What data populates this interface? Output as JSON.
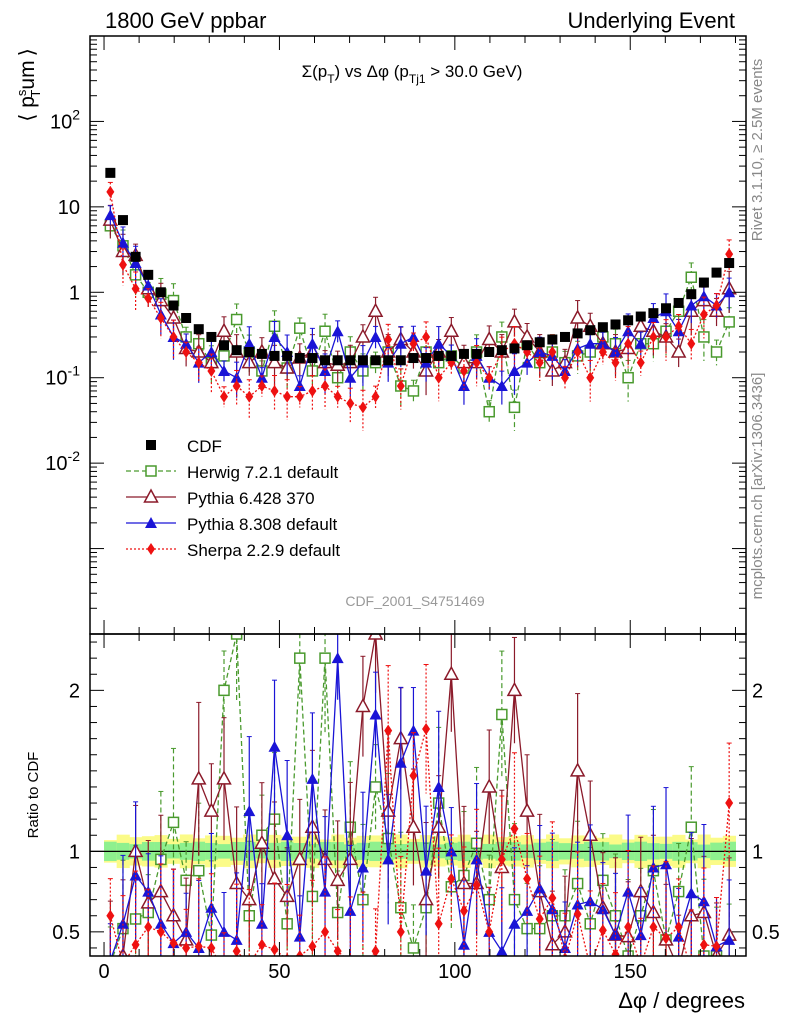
{
  "header": {
    "left": "1800 GeV ppbar",
    "right": "Underlying Event"
  },
  "side_labels": {
    "rivet": "Rivet 3.1.10, ≥ 2.5M events",
    "mcplots": "mcplots.cern.ch [arXiv:1306.3436]"
  },
  "watermark": "CDF_2001_S4751469",
  "colors": {
    "cdf": "#000000",
    "herwig": "#4a9a2e",
    "pythia6": "#8b1a2a",
    "pythia8": "#1a14d6",
    "sherpa": "#ee1111",
    "band_inner": "#8ef08e",
    "band_outer": "#fbfb88"
  },
  "chart_data": [
    {
      "type": "scatter",
      "title": "Σ(p_T) vs Δφ (p_Tj1 > 30.0 GeV)",
      "ylabel": "⟨ p_T^sum ⟩",
      "xlabel": "Δφ / degrees",
      "yscale": "log",
      "ylim": [
        0.0001,
        1000
      ],
      "xlim": [
        -4,
        183
      ],
      "yticks": [
        {
          "value": 0.01,
          "label": "10^-2"
        },
        {
          "value": 0.1,
          "label": "10^-1"
        },
        {
          "value": 1,
          "label": "1"
        },
        {
          "value": 10,
          "label": "10"
        },
        {
          "value": 100,
          "label": "10^2"
        }
      ],
      "legend_position": "bottom-left",
      "legend": [
        "CDF",
        "Herwig 7.2.1 default",
        "Pythia 6.428 370",
        "Pythia 8.308 default",
        "Sherpa 2.2.9 default"
      ],
      "x": [
        1.8,
        5.4,
        9,
        12.6,
        16.2,
        19.8,
        23.4,
        27,
        30.6,
        34.2,
        37.8,
        41.4,
        45,
        48.6,
        52.2,
        55.8,
        59.4,
        63,
        66.6,
        70.2,
        73.8,
        77.4,
        81,
        84.6,
        88.2,
        91.8,
        95.4,
        99,
        102.6,
        106.2,
        109.8,
        113.4,
        117,
        120.6,
        124.2,
        127.8,
        131.4,
        135,
        138.6,
        142.2,
        145.8,
        149.4,
        153,
        156.6,
        160.2,
        163.8,
        167.4,
        171,
        174.6,
        178.2
      ],
      "series": [
        {
          "name": "CDF",
          "values": [
            25,
            7,
            2.6,
            1.6,
            1.0,
            0.7,
            0.5,
            0.37,
            0.3,
            0.24,
            0.21,
            0.2,
            0.19,
            0.18,
            0.18,
            0.17,
            0.17,
            0.16,
            0.16,
            0.16,
            0.16,
            0.16,
            0.16,
            0.16,
            0.17,
            0.17,
            0.18,
            0.18,
            0.19,
            0.19,
            0.2,
            0.21,
            0.22,
            0.24,
            0.26,
            0.28,
            0.3,
            0.33,
            0.36,
            0.39,
            0.42,
            0.47,
            0.52,
            0.57,
            0.65,
            0.75,
            0.95,
            1.3,
            1.7,
            2.2
          ]
        },
        {
          "name": "Herwig 7.2.1 default",
          "values": [
            6,
            3.5,
            1.6,
            1.0,
            0.95,
            0.8,
            0.3,
            0.25,
            0.15,
            0.18,
            0.48,
            0.2,
            0.12,
            0.4,
            0.13,
            0.38,
            0.12,
            0.35,
            0.1,
            0.2,
            0.12,
            0.15,
            0.2,
            0.08,
            0.07,
            0.2,
            0.15,
            0.18,
            0.13,
            0.2,
            0.04,
            0.3,
            0.045,
            0.25,
            0.15,
            0.2,
            0.15,
            0.18,
            0.2,
            0.3,
            0.25,
            0.1,
            0.25,
            0.25,
            0.35,
            0.6,
            1.5,
            0.3,
            0.2,
            0.45
          ]
        },
        {
          "name": "Pythia 6.428 370",
          "values": [
            7,
            3.0,
            2.7,
            1.1,
            0.8,
            0.5,
            0.22,
            0.2,
            0.15,
            0.35,
            0.2,
            0.15,
            0.2,
            0.15,
            0.13,
            0.17,
            0.2,
            0.15,
            0.14,
            0.15,
            0.3,
            0.6,
            0.2,
            0.28,
            0.2,
            0.12,
            0.2,
            0.35,
            0.15,
            0.15,
            0.28,
            0.2,
            0.45,
            0.3,
            0.2,
            0.12,
            0.15,
            0.5,
            0.4,
            0.25,
            0.2,
            0.22,
            0.4,
            0.35,
            0.3,
            0.2,
            0.6,
            0.8,
            0.6,
            1.1
          ]
        },
        {
          "name": "Pythia 8.308 default",
          "values": [
            8,
            3.8,
            2.2,
            1.2,
            0.55,
            0.3,
            0.25,
            0.15,
            0.2,
            0.12,
            0.1,
            0.25,
            0.1,
            0.3,
            0.2,
            0.08,
            0.25,
            0.12,
            0.35,
            0.1,
            0.15,
            0.3,
            0.15,
            0.25,
            0.3,
            0.15,
            0.25,
            0.18,
            0.08,
            0.18,
            0.1,
            0.08,
            0.12,
            0.15,
            0.2,
            0.18,
            0.12,
            0.22,
            0.25,
            0.25,
            0.2,
            0.35,
            0.25,
            0.5,
            0.6,
            0.35,
            0.7,
            0.9,
            0.7,
            1.0
          ]
        },
        {
          "name": "Sherpa 2.2.9 default",
          "values": [
            15,
            2.1,
            1.1,
            0.85,
            0.5,
            0.3,
            0.2,
            0.15,
            0.12,
            0.06,
            0.08,
            0.06,
            0.08,
            0.07,
            0.06,
            0.06,
            0.07,
            0.08,
            0.06,
            0.05,
            0.045,
            0.06,
            0.28,
            0.08,
            0.25,
            0.3,
            0.1,
            0.15,
            0.12,
            0.15,
            0.1,
            0.2,
            0.25,
            0.2,
            0.15,
            0.2,
            0.1,
            0.2,
            0.1,
            0.2,
            0.15,
            0.25,
            0.15,
            0.3,
            0.3,
            0.4,
            0.25,
            0.55,
            0.7,
            2.8
          ]
        }
      ]
    },
    {
      "type": "scatter",
      "ylabel": "Ratio to CDF",
      "xlabel": "Δφ / degrees",
      "ylim": [
        0.35,
        2.35
      ],
      "xlim": [
        -4,
        183
      ],
      "yticks": [
        {
          "value": 0.5,
          "label": "0.5"
        },
        {
          "value": 1,
          "label": "1"
        },
        {
          "value": 2,
          "label": "2"
        }
      ],
      "xticks": [
        0,
        50,
        100,
        150
      ],
      "reference_line": 1,
      "x": [
        1.8,
        5.4,
        9,
        12.6,
        16.2,
        19.8,
        23.4,
        27,
        30.6,
        34.2,
        37.8,
        41.4,
        45,
        48.6,
        52.2,
        55.8,
        59.4,
        63,
        66.6,
        70.2,
        73.8,
        77.4,
        81,
        84.6,
        88.2,
        91.8,
        95.4,
        99,
        102.6,
        106.2,
        109.8,
        113.4,
        117,
        120.6,
        124.2,
        127.8,
        131.4,
        135,
        138.6,
        142.2,
        145.8,
        149.4,
        153,
        156.6,
        160.2,
        163.8,
        167.4,
        171,
        174.6,
        178.2
      ],
      "series": [
        {
          "name": "Herwig 7.2.1 default",
          "values": [
            0.3,
            0.52,
            0.58,
            0.62,
            0.95,
            1.18,
            0.82,
            0.88,
            0.48,
            2.0,
            2.35,
            0.6,
            1.1,
            1.2,
            0.55,
            2.2,
            0.72,
            2.2,
            0.62,
            1.15,
            0.7,
            1.4,
            1.08,
            0.65,
            0.4,
            0.65,
            1.3,
            0.78,
            0.85,
            1.05,
            0.7,
            1.85,
            0.7,
            0.52,
            0.52,
            0.6,
            0.6,
            0.8,
            0.55,
            0.82,
            0.6,
            0.35,
            0.6,
            0.88,
            0.45,
            0.75,
            1.15,
            0.35,
            0.35,
            0.3
          ]
        },
        {
          "name": "Pythia 6.428 370",
          "values": [
            0.3,
            0.35,
            1.0,
            0.68,
            0.75,
            0.6,
            0.45,
            1.45,
            1.25,
            1.45,
            0.8,
            0.7,
            1.05,
            0.83,
            0.72,
            0.95,
            1.15,
            0.95,
            0.82,
            0.95,
            1.9,
            2.35,
            1.25,
            1.7,
            1.15,
            0.7,
            1.15,
            2.1,
            0.8,
            0.8,
            1.4,
            0.9,
            2.0,
            1.25,
            0.75,
            0.42,
            0.5,
            1.5,
            1.1,
            0.65,
            0.48,
            0.47,
            0.75,
            0.62,
            0.45,
            0.27,
            0.6,
            0.62,
            0.35,
            0.48
          ]
        },
        {
          "name": "Pythia 8.308 default",
          "values": [
            0.32,
            0.55,
            0.85,
            0.75,
            0.55,
            0.43,
            0.5,
            0.4,
            0.65,
            0.5,
            0.45,
            1.25,
            0.55,
            1.65,
            1.1,
            0.47,
            1.45,
            0.75,
            2.2,
            0.63,
            0.9,
            1.85,
            0.95,
            1.55,
            1.75,
            0.88,
            1.4,
            1.0,
            0.42,
            0.95,
            0.5,
            0.38,
            0.55,
            0.63,
            0.77,
            0.64,
            0.4,
            0.67,
            0.69,
            0.64,
            0.48,
            0.75,
            0.48,
            0.9,
            0.92,
            0.47,
            0.74,
            0.69,
            0.41,
            0.45
          ]
        },
        {
          "name": "Sherpa 2.2.9 default",
          "values": [
            0.6,
            0.3,
            0.42,
            0.53,
            0.5,
            0.43,
            0.4,
            0.41,
            0.4,
            0.25,
            0.38,
            0.3,
            0.42,
            0.39,
            0.33,
            0.35,
            0.41,
            0.5,
            0.38,
            0.31,
            0.28,
            0.38,
            1.75,
            0.5,
            1.47,
            1.76,
            0.55,
            0.83,
            0.63,
            0.79,
            0.5,
            0.95,
            1.14,
            0.83,
            0.58,
            0.71,
            0.33,
            0.61,
            0.28,
            0.51,
            0.36,
            0.53,
            0.29,
            0.53,
            0.46,
            0.53,
            0.26,
            0.42,
            0.41,
            1.3
          ]
        }
      ]
    }
  ]
}
